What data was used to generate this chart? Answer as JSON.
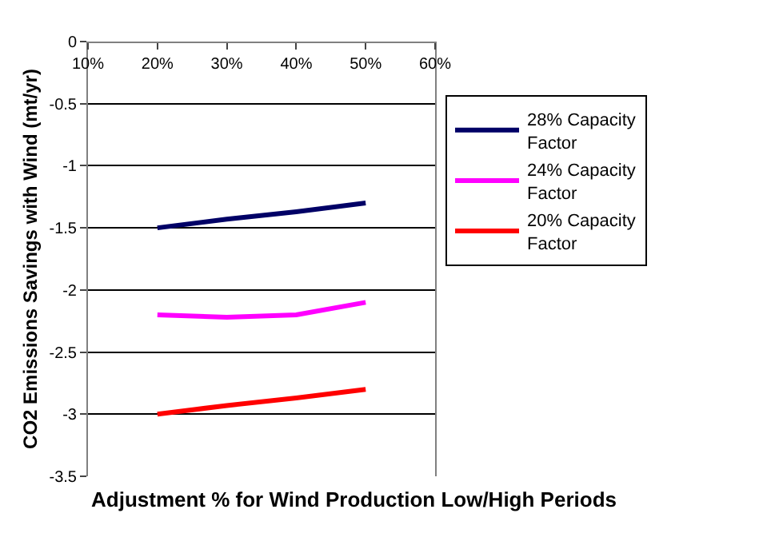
{
  "chart_data": {
    "type": "line",
    "xlabel": "Adjustment % for Wind Production Low/High Periods",
    "ylabel": "CO2 Emissions Savings with Wind (mt/yr)",
    "x": [
      20,
      30,
      40,
      50
    ],
    "series": [
      {
        "name": "28% Capacity Factor",
        "color": "#000066",
        "values": [
          -1.5,
          -1.43,
          -1.37,
          -1.3
        ]
      },
      {
        "name": "24% Capacity Factor",
        "color": "#ff00ff",
        "values": [
          -2.2,
          -2.22,
          -2.2,
          -2.1
        ]
      },
      {
        "name": "20% Capacity Factor",
        "color": "#ff0000",
        "values": [
          -3.0,
          -2.93,
          -2.87,
          -2.8
        ]
      }
    ],
    "xlim": [
      10,
      60
    ],
    "xticks": [
      {
        "value": 10,
        "label": "10%"
      },
      {
        "value": 20,
        "label": "20%"
      },
      {
        "value": 30,
        "label": "30%"
      },
      {
        "value": 40,
        "label": "40%"
      },
      {
        "value": 50,
        "label": "50%"
      },
      {
        "value": 60,
        "label": "60%"
      }
    ],
    "ylim": [
      -3.5,
      0
    ],
    "yticks": [
      -3.5,
      -3,
      -2.5,
      -2,
      -1.5,
      -1,
      -0.5,
      0
    ],
    "grid": "y",
    "legend": "right",
    "marker": "none",
    "line_style": "solid"
  }
}
